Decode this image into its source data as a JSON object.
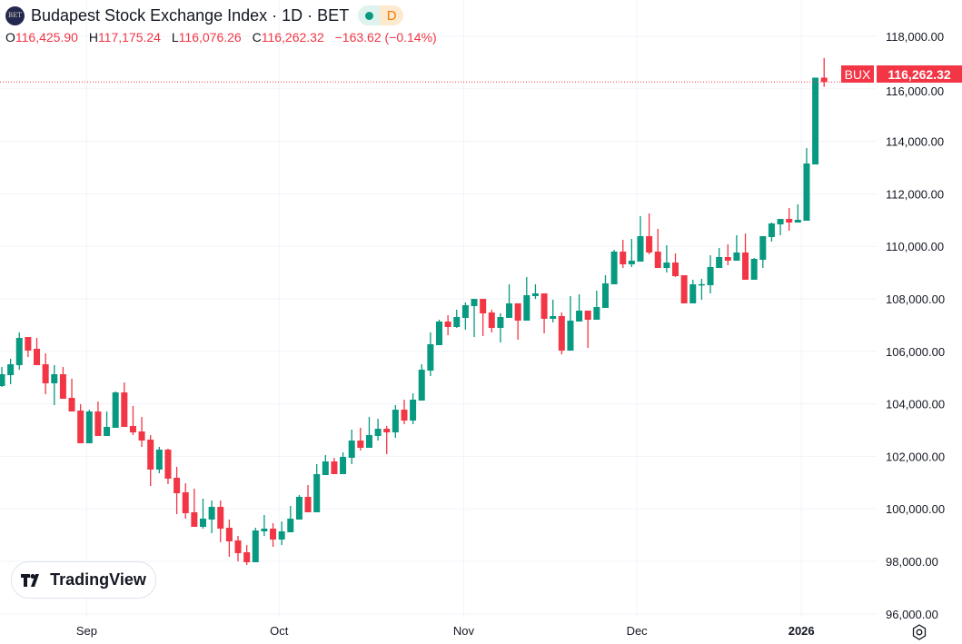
{
  "header": {
    "title": "Budapest Stock Exchange Index · 1D · BET",
    "logo_text": "BET",
    "interval_badge": "D",
    "ohlc": {
      "o_label": "O",
      "o": "116,425.90",
      "h_label": "H",
      "h": "117,175.24",
      "l_label": "L",
      "l": "116,076.26",
      "c_label": "C",
      "c": "116,262.32",
      "change": "−163.62 (−0.14%)"
    }
  },
  "price_label": {
    "symbol": "BUX",
    "value": "116,262.32"
  },
  "watermark": "TradingView",
  "colors": {
    "up": "#089981",
    "down": "#F23645",
    "grid": "#F0F3FA"
  },
  "chart_data": {
    "type": "candlestick",
    "title": "Budapest Stock Exchange Index · 1D · BET",
    "ylim": [
      95856,
      119384
    ],
    "y_ticks": [
      96000,
      98000,
      100000,
      102000,
      104000,
      106000,
      108000,
      110000,
      112000,
      114000,
      116000,
      118000
    ],
    "y_tick_labels": [
      "96,000.00",
      "98,000.00",
      "100,000.00",
      "102,000.00",
      "104,000.00",
      "106,000.00",
      "108,000.00",
      "110,000.00",
      "112,000.00",
      "114,000.00",
      "116,000.00",
      "118,000.00"
    ],
    "x_ticks": [
      {
        "label": "Sep",
        "index": 9.7
      },
      {
        "label": "Oct",
        "index": 31.7
      },
      {
        "label": "Nov",
        "index": 52.8
      },
      {
        "label": "Dec",
        "index": 72.6
      },
      {
        "label": "2026",
        "index": 91.4
      }
    ],
    "last_price": 116262.32,
    "ohlc": [
      [
        104679,
        105406,
        104644,
        105129
      ],
      [
        105094,
        105717,
        104748,
        105509
      ],
      [
        105475,
        106720,
        105302,
        106513
      ],
      [
        106547,
        106547,
        105786,
        106028
      ],
      [
        106098,
        106513,
        105475,
        105475
      ],
      [
        105509,
        105925,
        104368,
        104783
      ],
      [
        104783,
        105475,
        103952,
        105129
      ],
      [
        105129,
        105406,
        104195,
        104195
      ],
      [
        104229,
        104956,
        103710,
        103710
      ],
      [
        103745,
        103987,
        102499,
        102499
      ],
      [
        102499,
        103779,
        102499,
        103710
      ],
      [
        103710,
        104091,
        102776,
        102776
      ],
      [
        102776,
        103710,
        102776,
        103122
      ],
      [
        103088,
        104471,
        103088,
        104437
      ],
      [
        104437,
        104817,
        103122,
        103122
      ],
      [
        103157,
        103918,
        102811,
        102914
      ],
      [
        102949,
        103503,
        102361,
        102603
      ],
      [
        102638,
        102811,
        100873,
        101496
      ],
      [
        101496,
        102361,
        101358,
        102257
      ],
      [
        102257,
        102292,
        100942,
        101150
      ],
      [
        101184,
        101600,
        99800,
        100596
      ],
      [
        100631,
        100977,
        99627,
        99835
      ],
      [
        99870,
        100769,
        99316,
        99316
      ],
      [
        99316,
        100389,
        99247,
        99627
      ],
      [
        99593,
        100319,
        99074,
        100077
      ],
      [
        100077,
        100319,
        98728,
        99247
      ],
      [
        99281,
        99593,
        98174,
        98762
      ],
      [
        98797,
        98970,
        98001,
        98313
      ],
      [
        98347,
        98624,
        97863,
        97967
      ],
      [
        97967,
        99281,
        97967,
        99178
      ],
      [
        99143,
        99766,
        98970,
        99247
      ],
      [
        99247,
        99454,
        98555,
        98832
      ],
      [
        98832,
        99520,
        98624,
        99143
      ],
      [
        99108,
        100112,
        99108,
        99627
      ],
      [
        99593,
        100527,
        99593,
        100458
      ],
      [
        100458,
        100908,
        99870,
        99870
      ],
      [
        99870,
        101704,
        99870,
        101323
      ],
      [
        101288,
        102049,
        101288,
        101807
      ],
      [
        101807,
        101946,
        101323,
        101323
      ],
      [
        101323,
        102153,
        101323,
        101980
      ],
      [
        101946,
        103018,
        101704,
        102603
      ],
      [
        102603,
        103088,
        102222,
        102326
      ],
      [
        102326,
        103503,
        102326,
        102811
      ],
      [
        102776,
        103433,
        102603,
        103053
      ],
      [
        103053,
        103157,
        102084,
        102914
      ],
      [
        102914,
        103952,
        102707,
        103779
      ],
      [
        103779,
        104160,
        103226,
        103364
      ],
      [
        103364,
        104402,
        103226,
        104160
      ],
      [
        104125,
        105509,
        104125,
        105302
      ],
      [
        105267,
        106720,
        105060,
        106271
      ],
      [
        106236,
        107205,
        106236,
        107136
      ],
      [
        107136,
        107378,
        106616,
        106928
      ],
      [
        106928,
        107585,
        106893,
        107309
      ],
      [
        107274,
        107862,
        106824,
        107758
      ],
      [
        107724,
        108000,
        106547,
        108000
      ],
      [
        108000,
        108000,
        106582,
        107447
      ],
      [
        107482,
        107585,
        106720,
        106893
      ],
      [
        106893,
        107447,
        106340,
        107309
      ],
      [
        107274,
        108554,
        107274,
        107828
      ],
      [
        107828,
        107828,
        106444,
        107170
      ],
      [
        107170,
        108831,
        107170,
        108139
      ],
      [
        108104,
        108554,
        108000,
        108208
      ],
      [
        108208,
        108208,
        106686,
        107239
      ],
      [
        107239,
        107966,
        107101,
        107343
      ],
      [
        107343,
        107482,
        105890,
        106028
      ],
      [
        106028,
        108104,
        106028,
        107170
      ],
      [
        107136,
        108174,
        107136,
        107551
      ],
      [
        107551,
        107551,
        106132,
        107205
      ],
      [
        107205,
        108312,
        107205,
        107689
      ],
      [
        107654,
        108900,
        107654,
        108589
      ],
      [
        108554,
        109869,
        108554,
        109800
      ],
      [
        109800,
        110250,
        109177,
        109315
      ],
      [
        109315,
        110284,
        109212,
        109454
      ],
      [
        109419,
        111149,
        109419,
        110388
      ],
      [
        110388,
        111253,
        109696,
        109765
      ],
      [
        109800,
        110665,
        109177,
        109177
      ],
      [
        109177,
        110042,
        109004,
        109384
      ],
      [
        109384,
        109731,
        108831,
        108866
      ],
      [
        108900,
        108900,
        107828,
        107828
      ],
      [
        107828,
        108728,
        107828,
        108554
      ],
      [
        108554,
        108762,
        107966,
        108560
      ],
      [
        108520,
        109661,
        108208,
        109212
      ],
      [
        109177,
        109938,
        109177,
        109592
      ],
      [
        109592,
        110077,
        109281,
        109454
      ],
      [
        109454,
        110423,
        109454,
        109765
      ],
      [
        109765,
        110492,
        108728,
        108728
      ],
      [
        108728,
        109558,
        108728,
        109523
      ],
      [
        109488,
        110388,
        109177,
        110388
      ],
      [
        110353,
        110907,
        110180,
        110872
      ],
      [
        110838,
        111045,
        110423,
        111045
      ],
      [
        111045,
        111461,
        110596,
        110907
      ],
      [
        110907,
        111599,
        110907,
        111011
      ],
      [
        110976,
        113744,
        110976,
        113156
      ],
      [
        113121,
        116426,
        113121,
        116426
      ],
      [
        116425.9,
        117175.24,
        116076.26,
        116262.32
      ]
    ]
  }
}
